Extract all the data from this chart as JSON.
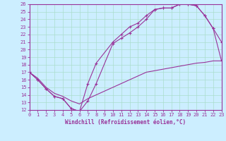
{
  "xlabel": "Windchill (Refroidissement éolien,°C)",
  "bg_color": "#cceeff",
  "line_color": "#993399",
  "grid_color": "#aaddcc",
  "xlim": [
    0,
    23
  ],
  "ylim": [
    12,
    26
  ],
  "xticks": [
    0,
    1,
    2,
    3,
    4,
    5,
    6,
    7,
    8,
    9,
    10,
    11,
    12,
    13,
    14,
    15,
    16,
    17,
    18,
    19,
    20,
    21,
    22,
    23
  ],
  "yticks": [
    12,
    13,
    14,
    15,
    16,
    17,
    18,
    19,
    20,
    21,
    22,
    23,
    24,
    25,
    26
  ],
  "line1_x": [
    0,
    1,
    2,
    3,
    4,
    5,
    6,
    7,
    8,
    10,
    11,
    12,
    13,
    14,
    15,
    16,
    17,
    18,
    19,
    20,
    21,
    22,
    23
  ],
  "line1_y": [
    17.0,
    16.0,
    14.8,
    13.8,
    13.5,
    12.2,
    11.8,
    13.2,
    15.5,
    20.8,
    21.5,
    22.2,
    23.0,
    24.0,
    25.3,
    25.5,
    25.5,
    26.0,
    26.0,
    25.8,
    24.5,
    22.8,
    21.0
  ],
  "line2_x": [
    0,
    1,
    2,
    3,
    4,
    5,
    6,
    7,
    8,
    10,
    11,
    12,
    13,
    14,
    15,
    16,
    17,
    18,
    19,
    20,
    21,
    22,
    23
  ],
  "line2_y": [
    17.0,
    16.0,
    14.8,
    13.8,
    13.5,
    12.2,
    11.8,
    15.5,
    18.2,
    21.0,
    22.0,
    23.0,
    23.5,
    24.5,
    25.3,
    25.5,
    25.5,
    26.0,
    26.0,
    25.8,
    24.5,
    22.8,
    18.5
  ],
  "line3_x": [
    0,
    1,
    2,
    3,
    4,
    5,
    6,
    7,
    8,
    9,
    10,
    11,
    12,
    13,
    14,
    15,
    16,
    17,
    18,
    19,
    20,
    21,
    22,
    23
  ],
  "line3_y": [
    17.0,
    16.2,
    15.0,
    14.2,
    13.8,
    13.2,
    12.8,
    13.5,
    14.0,
    14.5,
    15.0,
    15.5,
    16.0,
    16.5,
    17.0,
    17.2,
    17.4,
    17.6,
    17.8,
    18.0,
    18.2,
    18.3,
    18.5,
    18.5
  ]
}
